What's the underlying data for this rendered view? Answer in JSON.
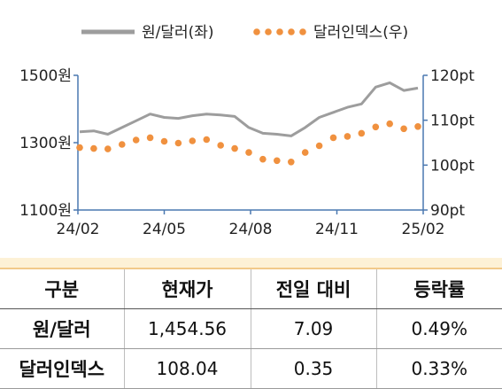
{
  "legend": {
    "usdkrw_label": "원/달러(좌)",
    "dxy_label": "달러인덱스(우)"
  },
  "colors": {
    "usdkrw": "#9d9d9d",
    "dxy": "#f0913f",
    "axis": "#4a78b0"
  },
  "chart_data": {
    "type": "line",
    "title": "",
    "x_ticks": [
      "24/02",
      "24/05",
      "24/08",
      "24/11",
      "25/02"
    ],
    "y_left": {
      "ticks": [
        "1500원",
        "1300원",
        "1100원"
      ],
      "values": [
        1500,
        1300,
        1100
      ],
      "range": [
        1100,
        1500
      ]
    },
    "y_right": {
      "ticks": [
        "120pt",
        "110pt",
        "100pt",
        "90pt"
      ],
      "values": [
        120,
        110,
        100,
        90
      ],
      "range": [
        90,
        120
      ]
    },
    "series": [
      {
        "name": "원/달러(좌)",
        "axis": "left",
        "style": "solid",
        "x": [
          "24/02",
          "24/02",
          "24/03",
          "24/03",
          "24/04",
          "24/04",
          "24/05",
          "24/05",
          "24/06",
          "24/06",
          "24/07",
          "24/07",
          "24/08",
          "24/08",
          "24/09",
          "24/09",
          "24/10",
          "24/10",
          "24/11",
          "24/11",
          "24/12",
          "24/12",
          "25/01",
          "25/01",
          "25/02"
        ],
        "values": [
          1332,
          1335,
          1325,
          1345,
          1365,
          1385,
          1375,
          1372,
          1380,
          1385,
          1382,
          1378,
          1345,
          1328,
          1325,
          1320,
          1345,
          1375,
          1390,
          1405,
          1415,
          1465,
          1478,
          1455,
          1462
        ]
      },
      {
        "name": "달러인덱스(우)",
        "axis": "right",
        "style": "dotted",
        "x": [
          "24/02",
          "24/02",
          "24/03",
          "24/03",
          "24/04",
          "24/04",
          "24/05",
          "24/05",
          "24/06",
          "24/06",
          "24/07",
          "24/07",
          "24/08",
          "24/08",
          "24/09",
          "24/09",
          "24/10",
          "24/10",
          "24/11",
          "24/11",
          "24/12",
          "24/12",
          "25/01",
          "25/01",
          "25/02"
        ],
        "values": [
          103.9,
          103.7,
          103.6,
          104.6,
          105.6,
          106.1,
          105.3,
          104.9,
          105.4,
          105.7,
          104.4,
          103.7,
          102.8,
          101.3,
          101.0,
          100.7,
          102.8,
          104.3,
          106.1,
          106.4,
          107.1,
          108.5,
          109.2,
          108.1,
          108.6
        ]
      }
    ],
    "grid": false,
    "legend_position": "top"
  },
  "table": {
    "headers": [
      "구분",
      "현재가",
      "전일 대비",
      "등락률"
    ],
    "rows": [
      {
        "label": "원/달러",
        "price": "1,454.56",
        "change": "7.09",
        "rate": "0.49%"
      },
      {
        "label": "달러인덱스",
        "price": "108.04",
        "change": "0.35",
        "rate": "0.33%"
      }
    ]
  }
}
